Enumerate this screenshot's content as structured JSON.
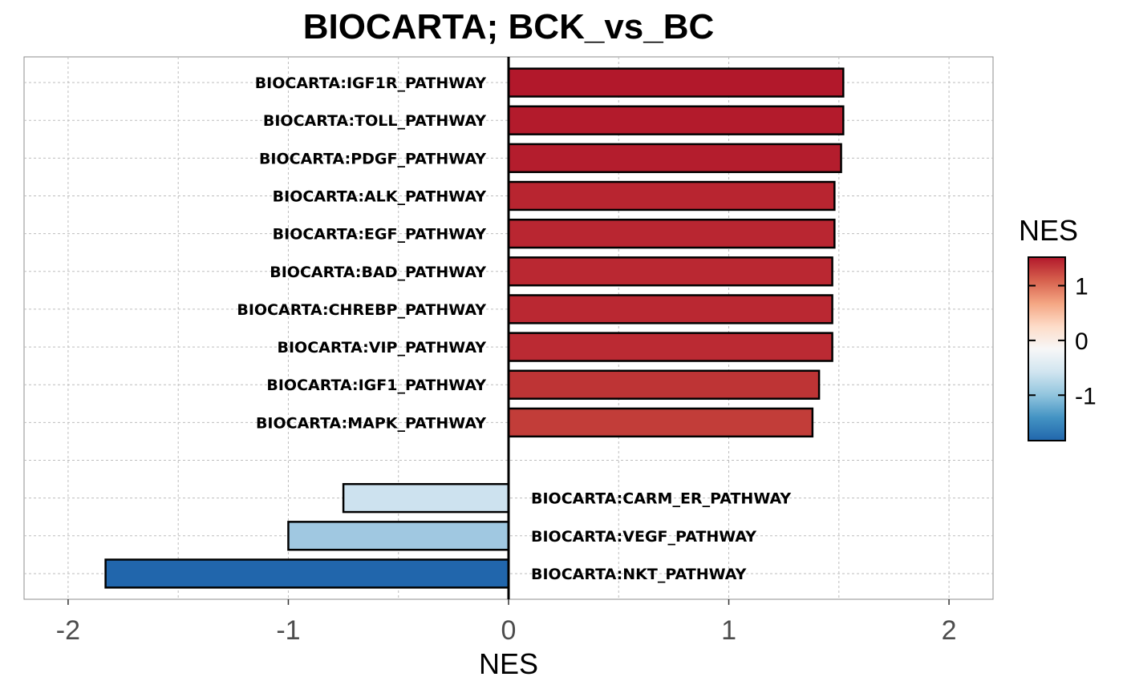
{
  "chart_data": {
    "type": "bar",
    "orientation": "horizontal",
    "title": "BIOCARTA; BCK_vs_BC",
    "xlabel": "NES",
    "ylabel": "",
    "xlim": [
      -2.2,
      2.2
    ],
    "xticks": [
      -2,
      -1,
      0,
      1,
      2
    ],
    "xtick_labels": [
      "-2",
      "-1",
      "0",
      "1",
      "2"
    ],
    "grid": true,
    "categories": [
      "BIOCARTA:IGF1R_PATHWAY",
      "BIOCARTA:TOLL_PATHWAY",
      "BIOCARTA:PDGF_PATHWAY",
      "BIOCARTA:ALK_PATHWAY",
      "BIOCARTA:EGF_PATHWAY",
      "BIOCARTA:BAD_PATHWAY",
      "BIOCARTA:CHREBP_PATHWAY",
      "BIOCARTA:VIP_PATHWAY",
      "BIOCARTA:IGF1_PATHWAY",
      "BIOCARTA:MAPK_PATHWAY",
      "",
      "BIOCARTA:CARM_ER_PATHWAY",
      "BIOCARTA:VEGF_PATHWAY",
      "BIOCARTA:NKT_PATHWAY"
    ],
    "values": [
      1.52,
      1.52,
      1.51,
      1.48,
      1.48,
      1.47,
      1.47,
      1.47,
      1.41,
      1.38,
      null,
      -0.75,
      -1.0,
      -1.83
    ],
    "colors": [
      "#b2182b",
      "#b31b2c",
      "#b41d2d",
      "#b82530",
      "#b92631",
      "#ba2832",
      "#ba2832",
      "#bb2a33",
      "#be3435",
      "#c23d39",
      null,
      "#cde2ef",
      "#a0c8e1",
      "#2166ac"
    ],
    "legend": {
      "title": "NES",
      "placement": "right",
      "type": "colorbar",
      "min": -1.83,
      "max": 1.52,
      "ticks": [
        1,
        0,
        -1
      ],
      "tick_labels": [
        "1",
        "0",
        "-1"
      ],
      "gradient": [
        "#2166ac",
        "#4393c3",
        "#92c5de",
        "#d1e5f0",
        "#f7f7f7",
        "#fddbc7",
        "#f4a582",
        "#d6604d",
        "#b2182b"
      ]
    }
  }
}
